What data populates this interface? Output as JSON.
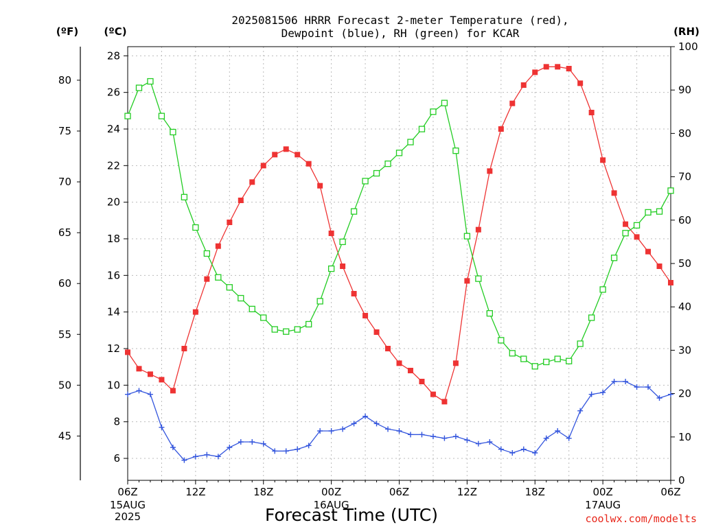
{
  "title": {
    "line1": "2025081506 HRRR Forecast 2-meter Temperature (red),",
    "line2": "Dewpoint (blue), RH (green) for KCAR"
  },
  "units": {
    "fahrenheit": "(ºF)",
    "celsius": "(ºC)",
    "rh": "(RH)"
  },
  "xlabel": "Forecast Time (UTC)",
  "credit": "coolwx.com/modelts",
  "colors": {
    "temperature": "#ee3333",
    "dewpoint": "#3355dd",
    "rh": "#22cc22"
  },
  "chart_data": {
    "type": "line",
    "x_unit": "forecast hour",
    "x": [
      0,
      1,
      2,
      3,
      4,
      5,
      6,
      7,
      8,
      9,
      10,
      11,
      12,
      13,
      14,
      15,
      16,
      17,
      18,
      19,
      20,
      21,
      22,
      23,
      24,
      25,
      26,
      27,
      28,
      29,
      30,
      31,
      32,
      33,
      34,
      35,
      36,
      37,
      38,
      39,
      40,
      41,
      42,
      43,
      44,
      45,
      46,
      47,
      48
    ],
    "xlim": [
      0,
      48
    ],
    "x_ticks": [
      {
        "h": 0,
        "label": "06Z",
        "sub": [
          "15AUG",
          "2025"
        ]
      },
      {
        "h": 6,
        "label": "12Z",
        "sub": []
      },
      {
        "h": 12,
        "label": "18Z",
        "sub": []
      },
      {
        "h": 18,
        "label": "00Z",
        "sub": [
          "16AUG"
        ]
      },
      {
        "h": 24,
        "label": "06Z",
        "sub": []
      },
      {
        "h": 30,
        "label": "12Z",
        "sub": []
      },
      {
        "h": 36,
        "label": "18Z",
        "sub": []
      },
      {
        "h": 42,
        "label": "00Z",
        "sub": [
          "17AUG"
        ]
      },
      {
        "h": 48,
        "label": "06Z",
        "sub": []
      }
    ],
    "celsius_axis": {
      "ylim": [
        4.8,
        28.5
      ],
      "ticks": [
        "6",
        "8",
        "10",
        "12",
        "14",
        "16",
        "18",
        "20",
        "22",
        "24",
        "26",
        "28"
      ]
    },
    "fahrenheit_axis": {
      "ticks": [
        "45",
        "50",
        "55",
        "60",
        "65",
        "70",
        "75",
        "80"
      ]
    },
    "rh_axis": {
      "ylim": [
        0,
        100
      ],
      "ticks": [
        "0",
        "10",
        "20",
        "30",
        "40",
        "50",
        "60",
        "70",
        "80",
        "90",
        "100"
      ]
    },
    "series": [
      {
        "name": "Temperature",
        "axis": "celsius",
        "marker": "filled-square",
        "values": [
          11.8,
          10.9,
          10.6,
          10.3,
          9.7,
          12.0,
          14.0,
          15.8,
          17.6,
          18.9,
          20.1,
          21.1,
          22.0,
          22.6,
          22.9,
          22.6,
          22.1,
          20.9,
          18.3,
          16.5,
          15.0,
          13.8,
          12.9,
          12.0,
          11.2,
          10.8,
          10.2,
          9.5,
          9.1,
          11.2,
          15.7,
          18.5,
          21.7,
          24.0,
          25.4,
          26.4,
          27.1,
          27.4,
          27.4,
          27.3,
          26.5,
          24.9,
          22.3,
          20.5,
          18.8,
          18.1,
          17.3,
          16.5,
          15.6
        ]
      },
      {
        "name": "Dewpoint",
        "axis": "celsius",
        "marker": "plus",
        "values": [
          9.5,
          9.7,
          9.5,
          7.7,
          6.6,
          5.9,
          6.1,
          6.2,
          6.1,
          6.6,
          6.9,
          6.9,
          6.8,
          6.4,
          6.4,
          6.5,
          6.7,
          7.5,
          7.5,
          7.6,
          7.9,
          8.3,
          7.9,
          7.6,
          7.5,
          7.3,
          7.3,
          7.2,
          7.1,
          7.2,
          7.0,
          6.8,
          6.9,
          6.5,
          6.3,
          6.5,
          6.3,
          7.1,
          7.5,
          7.1,
          8.6,
          9.5,
          9.6,
          10.2,
          10.2,
          9.9,
          9.9,
          9.3,
          9.5
        ]
      },
      {
        "name": "RH",
        "axis": "rh",
        "marker": "open-square",
        "values": [
          84,
          90.5,
          92,
          84,
          80.3,
          65.3,
          58.3,
          52.3,
          46.8,
          44.5,
          42,
          39.5,
          37.5,
          34.8,
          34.3,
          34.8,
          36,
          41.3,
          48.8,
          55,
          62,
          69,
          70.8,
          73,
          75.5,
          78,
          81,
          85,
          87,
          76,
          56.3,
          46.5,
          38.5,
          32.3,
          29.3,
          28,
          26.3,
          27.3,
          28,
          27.5,
          31.5,
          37.5,
          44,
          51.3,
          57,
          58.8,
          61.8,
          62,
          66.8
        ]
      }
    ]
  }
}
